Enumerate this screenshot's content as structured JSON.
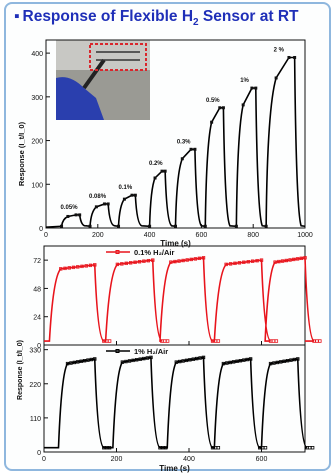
{
  "title": {
    "bullet": "▪",
    "text_a": "Response of Flexible H",
    "sub": "2",
    "text_b": " Sensor at RT"
  },
  "colors": {
    "title": "#1f2fb8",
    "frame": "#8fb7de",
    "series_top": "#000000",
    "series_mid": "#e8141c",
    "series_bottom": "#000000",
    "inset_box": "#d9262c"
  },
  "chart_data": [
    {
      "type": "line",
      "xlabel": "Time (s)",
      "ylabel": "Response (I_t/I_0)",
      "xlim": [
        0,
        1000
      ],
      "ylim": [
        0,
        430
      ],
      "xticks": [
        "0",
        "200",
        "400",
        "600",
        "800",
        "1000"
      ],
      "yticks": [
        "0",
        "100",
        "200",
        "300",
        "400"
      ],
      "pulses": [
        {
          "label": "0.05%",
          "start": 60,
          "end": 130,
          "peak": 30
        },
        {
          "label": "0.08%",
          "start": 170,
          "end": 240,
          "peak": 55
        },
        {
          "label": "0.1%",
          "start": 280,
          "end": 345,
          "peak": 75
        },
        {
          "label": "0.2%",
          "start": 400,
          "end": 460,
          "peak": 130
        },
        {
          "label": "0.3%",
          "start": 500,
          "end": 575,
          "peak": 180
        },
        {
          "label": "0.5%",
          "start": 615,
          "end": 685,
          "peak": 275
        },
        {
          "label": "1%",
          "start": 735,
          "end": 810,
          "peak": 320
        },
        {
          "label": "2 %",
          "start": 850,
          "end": 960,
          "peak": 390
        }
      ],
      "inset": "photo of flexible sensor held by gloved hand"
    },
    {
      "type": "line",
      "series": [
        {
          "name": "0.1% H₂/Air"
        }
      ],
      "ylim": [
        0,
        84
      ],
      "yticks": [
        "0",
        "24",
        "48",
        "72"
      ],
      "cycles": [
        {
          "start": 15,
          "end": 140,
          "peak": 68
        },
        {
          "start": 170,
          "end": 300,
          "peak": 72
        },
        {
          "start": 320,
          "end": 440,
          "peak": 74
        },
        {
          "start": 470,
          "end": 600,
          "peak": 72
        },
        {
          "start": 610,
          "end": 720,
          "peak": 74
        }
      ]
    },
    {
      "type": "line",
      "series": [
        {
          "name": "1% H₂/Air"
        }
      ],
      "xlabel": "Time (s)",
      "ylabel": "Response (I_t/I_0)",
      "xlim": [
        0,
        720
      ],
      "ylim": [
        0,
        345
      ],
      "xticks": [
        "0",
        "200",
        "400",
        "600"
      ],
      "yticks": [
        "0",
        "110",
        "220",
        "330"
      ],
      "cycles": [
        {
          "start": 40,
          "end": 140,
          "peak": 300
        },
        {
          "start": 190,
          "end": 295,
          "peak": 305
        },
        {
          "start": 340,
          "end": 440,
          "peak": 305
        },
        {
          "start": 470,
          "end": 570,
          "peak": 300
        },
        {
          "start": 600,
          "end": 700,
          "peak": 300
        }
      ]
    }
  ]
}
